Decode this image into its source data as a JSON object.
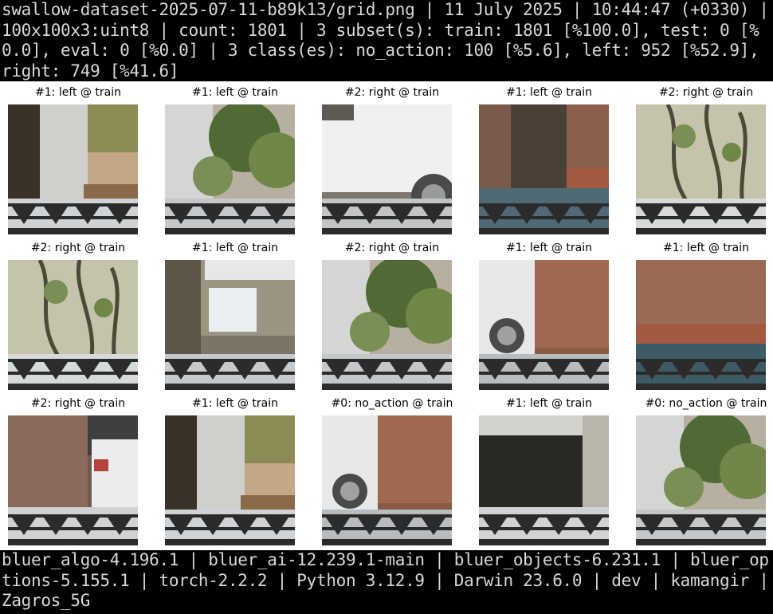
{
  "header": {
    "text": "swallow-dataset-2025-07-11-b89k13/grid.png | 11 July 2025 | 10:44:47 (+0330) | 100x100x3:uint8 | count: 1801 | 3 subset(s): train: 1801 [%100.0], test: 0 [%0.0], eval: 0 [%0.0] | 3 class(es): no_action: 100 [%5.6], left: 952 [%52.9], right: 749 [%41.6]"
  },
  "grid": {
    "cells": [
      {
        "caption": "#1: left @ train",
        "scene": "wall-bamboo"
      },
      {
        "caption": "#1: left @ train",
        "scene": "plants-wall"
      },
      {
        "caption": "#2: right @ train",
        "scene": "car-white"
      },
      {
        "caption": "#1: left @ train",
        "scene": "brick-door"
      },
      {
        "caption": "#2: right @ train",
        "scene": "vines"
      },
      {
        "caption": "#2: right @ train",
        "scene": "vines"
      },
      {
        "caption": "#1: left @ train",
        "scene": "window"
      },
      {
        "caption": "#2: right @ train",
        "scene": "plants-wall"
      },
      {
        "caption": "#1: left @ train",
        "scene": "car-brick"
      },
      {
        "caption": "#1: left @ train",
        "scene": "brick-shutter"
      },
      {
        "caption": "#2: right @ train",
        "scene": "car-trunk"
      },
      {
        "caption": "#1: left @ train",
        "scene": "wall-bamboo"
      },
      {
        "caption": "#0: no_action @ train",
        "scene": "car-brick"
      },
      {
        "caption": "#1: left @ train",
        "scene": "garage"
      },
      {
        "caption": "#0: no_action @ train",
        "scene": "plants-wall"
      }
    ]
  },
  "footer": {
    "text": "bluer_algo-4.196.1 | bluer_ai-12.239.1-main | bluer_objects-6.231.1 | bluer_options-5.155.1 | torch-2.2.2 | Python 3.12.9 | Darwin 23.6.0 | dev | kamangir | Zagros_5G"
  }
}
